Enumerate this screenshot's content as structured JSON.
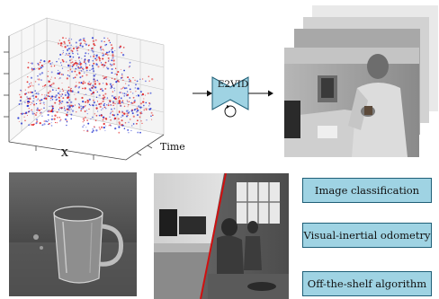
{
  "plot": {
    "x_axis_label": "X",
    "time_axis_label": "Time"
  },
  "network": {
    "label": "E2VID"
  },
  "applications": [
    {
      "label": "Image classification"
    },
    {
      "label": "Visual-inertial odometry"
    },
    {
      "label": "Off-the-shelf algorithm"
    }
  ],
  "colors": {
    "events_positive": "#1f2fd0",
    "events_negative": "#e01a1a",
    "box_fill": "#9fd3e3",
    "box_border": "#1f5f77",
    "network_fill": "#9fd3e3",
    "split_line": "#d01010"
  }
}
